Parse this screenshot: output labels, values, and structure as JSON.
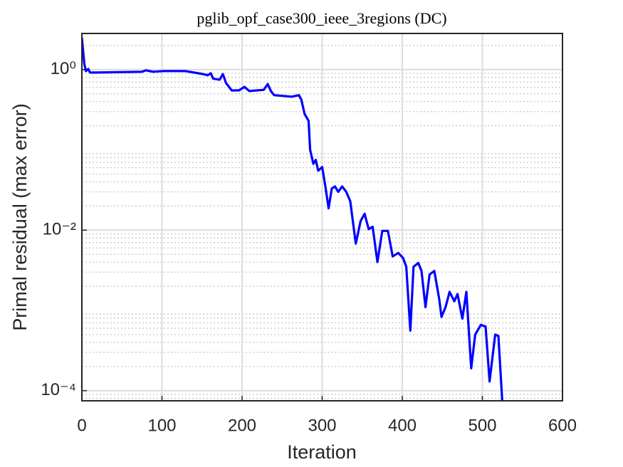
{
  "chart_data": {
    "type": "line",
    "title": "pglib_opf_case300_ieee_3regions (DC)",
    "xlabel": "Iteration",
    "ylabel": "Primal residual (max error)",
    "log_y": true,
    "grid": true,
    "xlim": [
      0,
      600
    ],
    "xticks": [
      0,
      100,
      200,
      300,
      400,
      500,
      600
    ],
    "ylim": [
      7.48e-05,
      2.82
    ],
    "yticks": [
      {
        "value": 0.0001,
        "label": "10⁻⁴"
      },
      {
        "value": 0.01,
        "label": "10⁻²"
      },
      {
        "value": 1,
        "label": "10⁰"
      }
    ],
    "yminorticks": [
      8e-05,
      9e-05,
      0.0002,
      0.0003,
      0.0004,
      0.0005,
      0.0006,
      0.0007,
      0.0008,
      0.0009,
      0.002,
      0.003,
      0.004,
      0.005,
      0.006,
      0.007,
      0.008,
      0.009,
      0.02,
      0.03,
      0.04,
      0.05,
      0.06,
      0.07,
      0.08,
      0.09,
      0.2,
      0.3,
      0.4,
      0.5,
      0.6,
      0.7,
      0.8,
      0.9,
      2
    ],
    "series": [
      {
        "color": "#0000ff",
        "x": [
          0,
          3,
          5,
          8,
          10,
          18,
          75,
          80,
          89,
          102,
          129,
          151,
          157,
          161,
          164,
          172,
          176,
          180,
          187,
          196,
          203,
          209,
          227,
          232,
          236,
          240,
          262,
          271,
          274,
          278,
          283,
          285,
          289,
          292,
          295,
          300,
          304,
          308,
          312,
          316,
          320,
          325,
          330,
          335,
          342,
          348,
          353,
          358,
          363,
          369,
          375,
          382,
          388,
          395,
          401,
          405,
          410,
          414,
          420,
          424,
          429,
          434,
          440,
          446,
          449,
          454,
          459,
          465,
          469,
          475,
          480,
          486,
          491,
          498,
          504,
          509,
          516,
          520,
          525
        ],
        "values": [
          2.5,
          1.18,
          0.96,
          1.02,
          0.92,
          0.92,
          0.94,
          0.98,
          0.94,
          0.96,
          0.96,
          0.88,
          0.85,
          0.9,
          0.77,
          0.75,
          0.88,
          0.68,
          0.55,
          0.55,
          0.61,
          0.54,
          0.56,
          0.66,
          0.54,
          0.48,
          0.46,
          0.48,
          0.42,
          0.28,
          0.23,
          0.1,
          0.067,
          0.075,
          0.055,
          0.061,
          0.035,
          0.0187,
          0.033,
          0.035,
          0.03,
          0.035,
          0.03,
          0.023,
          0.0068,
          0.013,
          0.016,
          0.0103,
          0.011,
          0.004,
          0.0098,
          0.0098,
          0.0047,
          0.0052,
          0.0045,
          0.0035,
          0.00056,
          0.0035,
          0.0039,
          0.0031,
          0.0011,
          0.0028,
          0.0031,
          0.0014,
          0.00083,
          0.0011,
          0.0017,
          0.0013,
          0.0016,
          0.00079,
          0.0017,
          0.00019,
          0.0005,
          0.00066,
          0.00063,
          0.00013,
          0.0005,
          0.00048,
          6.9e-05
        ]
      }
    ]
  }
}
